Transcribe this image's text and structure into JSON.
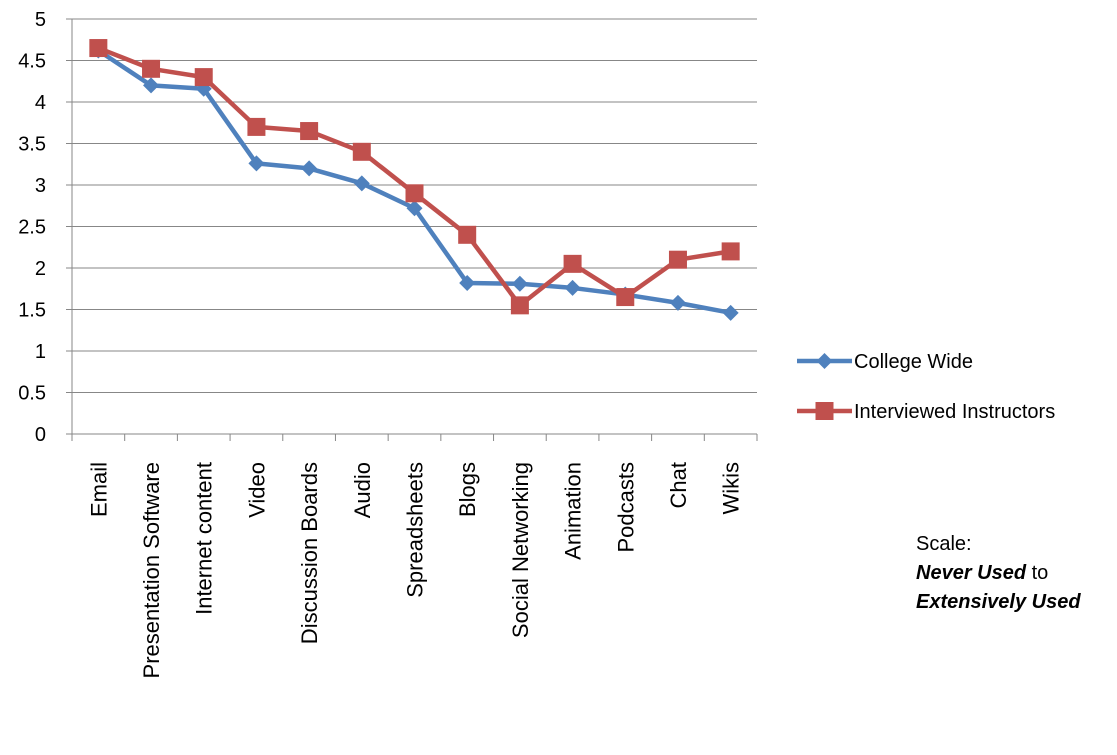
{
  "chart_data": {
    "type": "line",
    "categories": [
      "Email",
      "Presentation Software",
      "Internet content",
      "Video",
      "Discussion Boards",
      "Audio",
      "Spreadsheets",
      "Blogs",
      "Social Networking",
      "Animation",
      "Podcasts",
      "Chat",
      "Wikis"
    ],
    "series": [
      {
        "name": "College Wide",
        "color": "#4F81BD",
        "marker": "diamond",
        "values": [
          4.62,
          4.2,
          4.16,
          3.26,
          3.2,
          3.02,
          2.72,
          1.82,
          1.81,
          1.76,
          1.68,
          1.58,
          1.46
        ]
      },
      {
        "name": "Interviewed Instructors",
        "color": "#C0504D",
        "marker": "square",
        "values": [
          4.65,
          4.4,
          4.3,
          3.7,
          3.65,
          3.4,
          2.9,
          2.4,
          1.55,
          2.05,
          1.65,
          2.1,
          2.2
        ]
      }
    ],
    "yticks": [
      "0",
      "0.5",
      "1",
      "1.5",
      "2",
      "2.5",
      "3",
      "3.5",
      "4",
      "4.5",
      "5"
    ],
    "ylim": [
      0,
      5
    ],
    "grid": true,
    "legend": "right"
  },
  "note": {
    "line1": "Scale:",
    "bold1": "Never Used",
    "mid": " to",
    "bold2": "Extensively Used"
  }
}
